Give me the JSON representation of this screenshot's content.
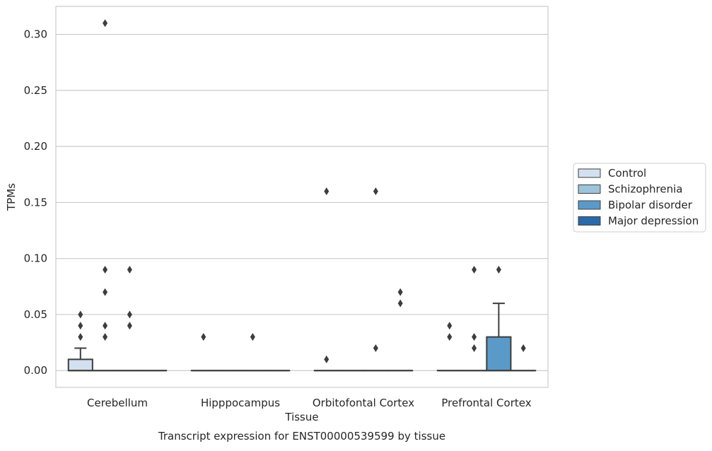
{
  "chart_data": {
    "type": "boxplot",
    "title": "",
    "caption": "Transcript expression for ENST00000539599 by tissue",
    "xlabel": "Tissue",
    "ylabel": "TPMs",
    "ylim": [
      -0.015,
      0.325
    ],
    "yticks": [
      0.0,
      0.05,
      0.1,
      0.15,
      0.2,
      0.25,
      0.3
    ],
    "ytick_labels": [
      "0.00",
      "0.05",
      "0.10",
      "0.15",
      "0.20",
      "0.25",
      "0.30"
    ],
    "grid": "horizontal",
    "legend_position": "right",
    "categories": [
      "Cerebellum",
      "Hipppocampus",
      "Orbitofontal Cortex",
      "Prefrontal Cortex"
    ],
    "series": [
      {
        "name": "Control",
        "color": "#d3e0ef"
      },
      {
        "name": "Schizophrenia",
        "color": "#9ec4dc"
      },
      {
        "name": "Bipolar disorder",
        "color": "#5a9ac9"
      },
      {
        "name": "Major depression",
        "color": "#2b6aa9"
      }
    ],
    "boxes": [
      {
        "category": 0,
        "series": 0,
        "q1": 0.0,
        "median": 0.0,
        "q3": 0.01,
        "whisker_low": 0.0,
        "whisker_high": 0.02,
        "outliers": [
          0.03,
          0.04,
          0.05
        ]
      },
      {
        "category": 0,
        "series": 1,
        "q1": 0.0,
        "median": 0.0,
        "q3": 0.0,
        "whisker_low": 0.0,
        "whisker_high": 0.0,
        "outliers": [
          0.31,
          0.09,
          0.07,
          0.04,
          0.03
        ]
      },
      {
        "category": 0,
        "series": 2,
        "q1": 0.0,
        "median": 0.0,
        "q3": 0.0,
        "whisker_low": 0.0,
        "whisker_high": 0.0,
        "outliers": [
          0.09,
          0.05,
          0.04
        ]
      },
      {
        "category": 0,
        "series": 3,
        "q1": 0.0,
        "median": 0.0,
        "q3": 0.0,
        "whisker_low": 0.0,
        "whisker_high": 0.0,
        "outliers": []
      },
      {
        "category": 1,
        "series": 0,
        "q1": 0.0,
        "median": 0.0,
        "q3": 0.0,
        "whisker_low": 0.0,
        "whisker_high": 0.0,
        "outliers": [
          0.03
        ]
      },
      {
        "category": 1,
        "series": 1,
        "q1": 0.0,
        "median": 0.0,
        "q3": 0.0,
        "whisker_low": 0.0,
        "whisker_high": 0.0,
        "outliers": []
      },
      {
        "category": 1,
        "series": 2,
        "q1": 0.0,
        "median": 0.0,
        "q3": 0.0,
        "whisker_low": 0.0,
        "whisker_high": 0.0,
        "outliers": [
          0.03
        ]
      },
      {
        "category": 1,
        "series": 3,
        "q1": 0.0,
        "median": 0.0,
        "q3": 0.0,
        "whisker_low": 0.0,
        "whisker_high": 0.0,
        "outliers": []
      },
      {
        "category": 2,
        "series": 0,
        "q1": 0.0,
        "median": 0.0,
        "q3": 0.0,
        "whisker_low": 0.0,
        "whisker_high": 0.0,
        "outliers": [
          0.16,
          0.01
        ]
      },
      {
        "category": 2,
        "series": 1,
        "q1": 0.0,
        "median": 0.0,
        "q3": 0.0,
        "whisker_low": 0.0,
        "whisker_high": 0.0,
        "outliers": []
      },
      {
        "category": 2,
        "series": 2,
        "q1": 0.0,
        "median": 0.0,
        "q3": 0.0,
        "whisker_low": 0.0,
        "whisker_high": 0.0,
        "outliers": [
          0.16,
          0.02
        ]
      },
      {
        "category": 2,
        "series": 3,
        "q1": 0.0,
        "median": 0.0,
        "q3": 0.0,
        "whisker_low": 0.0,
        "whisker_high": 0.0,
        "outliers": [
          0.07,
          0.06
        ]
      },
      {
        "category": 3,
        "series": 0,
        "q1": 0.0,
        "median": 0.0,
        "q3": 0.0,
        "whisker_low": 0.0,
        "whisker_high": 0.0,
        "outliers": [
          0.04,
          0.03
        ]
      },
      {
        "category": 3,
        "series": 1,
        "q1": 0.0,
        "median": 0.0,
        "q3": 0.0,
        "whisker_low": 0.0,
        "whisker_high": 0.0,
        "outliers": [
          0.09,
          0.03,
          0.02
        ]
      },
      {
        "category": 3,
        "series": 2,
        "q1": 0.0,
        "median": 0.0,
        "q3": 0.03,
        "whisker_low": 0.0,
        "whisker_high": 0.06,
        "outliers": [
          0.09
        ]
      },
      {
        "category": 3,
        "series": 3,
        "q1": 0.0,
        "median": 0.0,
        "q3": 0.0,
        "whisker_low": 0.0,
        "whisker_high": 0.0,
        "outliers": [
          0.02
        ]
      }
    ]
  }
}
